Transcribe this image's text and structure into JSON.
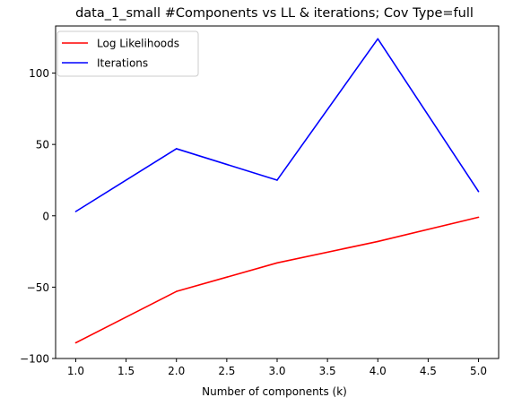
{
  "chart_data": {
    "type": "line",
    "title": "data_1_small #Components vs LL & iterations; Cov Type=full",
    "xlabel": "Number of components (k)",
    "ylabel": "",
    "x": [
      1.0,
      2.0,
      3.0,
      4.0,
      5.0
    ],
    "xlim": [
      0.8,
      5.2
    ],
    "ylim": [
      -100,
      133
    ],
    "xticks": [
      1.0,
      1.5,
      2.0,
      2.5,
      3.0,
      3.5,
      4.0,
      4.5,
      5.0
    ],
    "xtick_labels": [
      "1.0",
      "1.5",
      "2.0",
      "2.5",
      "3.0",
      "3.5",
      "4.0",
      "4.5",
      "5.0"
    ],
    "yticks": [
      -100,
      -50,
      0,
      50,
      100
    ],
    "ytick_labels": [
      "−100",
      "−50",
      "0",
      "50",
      "100"
    ],
    "grid": false,
    "legend_position": "top-left",
    "series": [
      {
        "name": "Log Likelihoods",
        "color": "#ff0000",
        "values": [
          -89,
          -53,
          -33,
          -18,
          -1
        ]
      },
      {
        "name": "Iterations",
        "color": "#0000ff",
        "values": [
          3,
          47,
          25,
          124,
          17
        ]
      }
    ]
  }
}
